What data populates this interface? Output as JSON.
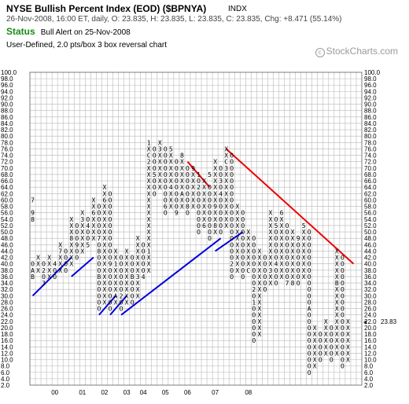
{
  "header": {
    "title": "NYSE Bullish Percent Index (EOD) ($BPNYA)",
    "symbol_tag": "INDX",
    "ohlc_line": "26-Nov-2008, 16:00 ET, daily, O: 23.835, H: 23.835, L: 23.835, C: 23.835, Chg: +8.471 (55.14%)",
    "status_label": "Status",
    "status_text": "Bull Alert on 25-Nov-2008",
    "chart_type_text": "User-Defined, 2.0 pts/box 3 box reversal chart",
    "brand": "StockCharts.com",
    "brand_mark": "c"
  },
  "chart_data": {
    "type": "point-and-figure",
    "box_size": 2.0,
    "reversal": 3,
    "ylim": [
      2,
      100
    ],
    "y_ticks": [
      "2.0",
      "4.0",
      "6.0",
      "8.0",
      "10.0",
      "12.0",
      "14.0",
      "16.0",
      "18.0",
      "20.0",
      "22.0",
      "24.0",
      "26.0",
      "28.0",
      "30.0",
      "32.0",
      "34.0",
      "36.0",
      "38.0",
      "40.0",
      "42.0",
      "44.0",
      "46.0",
      "48.0",
      "50.0",
      "52.0",
      "54.0",
      "56.0",
      "58.0",
      "60.0",
      "62.0",
      "64.0",
      "66.0",
      "68.0",
      "70.0",
      "72.0",
      "74.0",
      "76.0",
      "78.0",
      "80.0",
      "82.0",
      "84.0",
      "86.0",
      "88.0",
      "90.0",
      "92.0",
      "94.0",
      "96.0",
      "98.0",
      "100.0"
    ],
    "x_year_labels": [
      "00",
      "01",
      "02",
      "03",
      "04",
      "05",
      "06",
      "07",
      "08"
    ],
    "x_year_columns": [
      4,
      9,
      13,
      17,
      20,
      24,
      28,
      33,
      39
    ],
    "last_price_label": "23.83",
    "colors": {
      "x": "#000000",
      "o": "#000000",
      "current_x": "#1aa01a",
      "month": "#c00000",
      "support": "#0000dd",
      "resistance": "#ee0000",
      "grid": "#b8b8b8"
    },
    "columns": [
      {
        "type": "O",
        "from": 40,
        "to": 36
      },
      {
        "type": "X",
        "from": 38,
        "to": 42
      },
      {
        "type": "O",
        "from": 40,
        "to": 34
      },
      {
        "type": "X",
        "from": 36,
        "to": 42
      },
      {
        "type": "O",
        "from": 40,
        "to": 36
      },
      {
        "type": "X",
        "from": 38,
        "to": 46
      },
      {
        "type": "O",
        "from": 44,
        "to": 38
      },
      {
        "type": "X",
        "from": 40,
        "to": 54
      },
      {
        "type": "O",
        "from": 52,
        "to": 42
      },
      {
        "type": "X",
        "from": 44,
        "to": 56
      },
      {
        "type": "O",
        "from": 54,
        "to": 46
      },
      {
        "type": "X",
        "from": 48,
        "to": 60
      },
      {
        "type": "O",
        "from": 58,
        "to": 26
      },
      {
        "type": "X",
        "from": 28,
        "to": 64
      },
      {
        "type": "O",
        "from": 62,
        "to": 26
      },
      {
        "type": "X",
        "from": 28,
        "to": 44
      },
      {
        "type": "O",
        "from": 42,
        "to": 26
      },
      {
        "type": "X",
        "from": 28,
        "to": 44
      },
      {
        "type": "O",
        "from": 42,
        "to": 28
      },
      {
        "type": "X",
        "from": 30,
        "to": 48
      },
      {
        "type": "O",
        "from": 46,
        "to": 36
      },
      {
        "type": "X",
        "from": 38,
        "to": 78
      },
      {
        "type": "O",
        "from": 76,
        "to": 62
      },
      {
        "type": "X",
        "from": 64,
        "to": 78
      },
      {
        "type": "O",
        "from": 76,
        "to": 56
      },
      {
        "type": "X",
        "from": 58,
        "to": 74
      },
      {
        "type": "O",
        "from": 72,
        "to": 56
      },
      {
        "type": "X",
        "from": 58,
        "to": 72
      },
      {
        "type": "O",
        "from": 70,
        "to": 56
      },
      {
        "type": "X",
        "from": 58,
        "to": 70
      },
      {
        "type": "O",
        "from": 68,
        "to": 50
      },
      {
        "type": "X",
        "from": 52,
        "to": 66
      },
      {
        "type": "O",
        "from": 64,
        "to": 48
      },
      {
        "type": "X",
        "from": 50,
        "to": 72
      },
      {
        "type": "O",
        "from": 70,
        "to": 50
      },
      {
        "type": "X",
        "from": 52,
        "to": 76
      },
      {
        "type": "O",
        "from": 74,
        "to": 36
      },
      {
        "type": "X",
        "from": 38,
        "to": 58
      },
      {
        "type": "O",
        "from": 56,
        "to": 36
      },
      {
        "type": "X",
        "from": 38,
        "to": 50
      },
      {
        "type": "O",
        "from": 48,
        "to": 16
      },
      {
        "type": "X",
        "from": 18,
        "to": 44
      },
      {
        "type": "O",
        "from": 42,
        "to": 32
      },
      {
        "type": "X",
        "from": 34,
        "to": 56
      },
      {
        "type": "O",
        "from": 54,
        "to": 34
      },
      {
        "type": "X",
        "from": 36,
        "to": 54
      },
      {
        "type": "O",
        "from": 52,
        "to": 34
      },
      {
        "type": "X",
        "from": 36,
        "to": 50
      },
      {
        "type": "O",
        "from": 48,
        "to": 34
      },
      {
        "type": "X",
        "from": 36,
        "to": 52
      },
      {
        "type": "O",
        "from": 50,
        "to": 6
      },
      {
        "type": "X",
        "from": 8,
        "to": 20
      },
      {
        "type": "O",
        "from": 18,
        "to": 10
      },
      {
        "type": "X",
        "from": 12,
        "to": 22
      },
      {
        "type": "O",
        "from": 20,
        "to": 10
      },
      {
        "type": "X",
        "from": 12,
        "to": 44
      },
      {
        "type": "O",
        "from": 42,
        "to": 8
      },
      {
        "type": "X",
        "from": 10,
        "to": 22
      }
    ],
    "month_markers": [
      {
        "col": 0,
        "value": 56,
        "label": "9"
      },
      {
        "col": 0,
        "value": 60,
        "label": "7"
      },
      {
        "col": 0,
        "value": 54,
        "label": "8"
      },
      {
        "col": 0,
        "value": 38,
        "label": "A"
      },
      {
        "col": 0,
        "value": 36,
        "label": "B"
      },
      {
        "col": 2,
        "value": 34,
        "label": "3"
      },
      {
        "col": 2,
        "value": 38,
        "label": "2"
      },
      {
        "col": 4,
        "value": 40,
        "label": "4"
      },
      {
        "col": 5,
        "value": 44,
        "label": "7"
      },
      {
        "col": 7,
        "value": 48,
        "label": "8"
      },
      {
        "col": 8,
        "value": 46,
        "label": "9"
      },
      {
        "col": 9,
        "value": 54,
        "label": "3"
      },
      {
        "col": 10,
        "value": 52,
        "label": "4"
      },
      {
        "col": 10,
        "value": 46,
        "label": "5"
      },
      {
        "col": 11,
        "value": 56,
        "label": "6"
      },
      {
        "col": 12,
        "value": 48,
        "label": "7"
      },
      {
        "col": 12,
        "value": 44,
        "label": "8"
      },
      {
        "col": 12,
        "value": 36,
        "label": "B"
      },
      {
        "col": 13,
        "value": 60,
        "label": "6"
      },
      {
        "col": 14,
        "value": 40,
        "label": "9"
      },
      {
        "col": 15,
        "value": 30,
        "label": "A"
      },
      {
        "col": 15,
        "value": 40,
        "label": "1"
      },
      {
        "col": 16,
        "value": 30,
        "label": "2"
      },
      {
        "col": 18,
        "value": 36,
        "label": "B"
      },
      {
        "col": 19,
        "value": 36,
        "label": "3"
      },
      {
        "col": 20,
        "value": 36,
        "label": "4"
      },
      {
        "col": 21,
        "value": 44,
        "label": "1"
      },
      {
        "col": 21,
        "value": 78,
        "label": "1"
      },
      {
        "col": 21,
        "value": 74,
        "label": "C"
      },
      {
        "col": 21,
        "value": 72,
        "label": "2"
      },
      {
        "col": 22,
        "value": 68,
        "label": "5"
      },
      {
        "col": 23,
        "value": 76,
        "label": "3"
      },
      {
        "col": 24,
        "value": 58,
        "label": "6"
      },
      {
        "col": 25,
        "value": 76,
        "label": "5"
      },
      {
        "col": 25,
        "value": 64,
        "label": "4"
      },
      {
        "col": 26,
        "value": 56,
        "label": "9"
      },
      {
        "col": 27,
        "value": 74,
        "label": "8"
      },
      {
        "col": 27,
        "value": 62,
        "label": "A"
      },
      {
        "col": 28,
        "value": 58,
        "label": "8"
      },
      {
        "col": 29,
        "value": 70,
        "label": "9"
      },
      {
        "col": 30,
        "value": 68,
        "label": "1"
      },
      {
        "col": 30,
        "value": 64,
        "label": "2"
      },
      {
        "col": 31,
        "value": 52,
        "label": "6"
      },
      {
        "col": 32,
        "value": 68,
        "label": "5"
      },
      {
        "col": 33,
        "value": 52,
        "label": "8"
      },
      {
        "col": 33,
        "value": 58,
        "label": "9"
      },
      {
        "col": 34,
        "value": 66,
        "label": "3"
      },
      {
        "col": 34,
        "value": 62,
        "label": "4"
      },
      {
        "col": 35,
        "value": 72,
        "label": "C"
      },
      {
        "col": 35,
        "value": 70,
        "label": "3"
      },
      {
        "col": 36,
        "value": 40,
        "label": "2"
      },
      {
        "col": 39,
        "value": 38,
        "label": "C"
      },
      {
        "col": 40,
        "value": 28,
        "label": "1"
      },
      {
        "col": 40,
        "value": 32,
        "label": "2"
      },
      {
        "col": 43,
        "value": 38,
        "label": "3"
      },
      {
        "col": 44,
        "value": 40,
        "label": "4"
      },
      {
        "col": 44,
        "value": 52,
        "label": "5"
      },
      {
        "col": 45,
        "value": 56,
        "label": "6"
      },
      {
        "col": 46,
        "value": 34,
        "label": "7"
      },
      {
        "col": 47,
        "value": 34,
        "label": "8"
      },
      {
        "col": 48,
        "value": 48,
        "label": "9"
      },
      {
        "col": 49,
        "value": 52,
        "label": "5"
      },
      {
        "col": 50,
        "value": 26,
        "label": "A"
      },
      {
        "col": 55,
        "value": 34,
        "label": "B"
      }
    ],
    "support_lines": [
      {
        "from": [
          0,
          30
        ],
        "to": [
          7,
          42
        ]
      },
      {
        "from": [
          7,
          36
        ],
        "to": [
          11,
          42
        ]
      },
      {
        "from": [
          12,
          24
        ],
        "to": [
          15,
          30
        ]
      },
      {
        "from": [
          14,
          24
        ],
        "to": [
          17,
          30
        ]
      },
      {
        "from": [
          16,
          24
        ],
        "to": [
          34,
          48
        ]
      },
      {
        "from": [
          33,
          44
        ],
        "to": [
          38,
          50
        ]
      }
    ],
    "resistance_lines": [
      {
        "from": [
          28,
          72
        ],
        "to": [
          32,
          64
        ]
      },
      {
        "from": [
          35,
          76
        ],
        "to": [
          58,
          40
        ]
      }
    ]
  }
}
